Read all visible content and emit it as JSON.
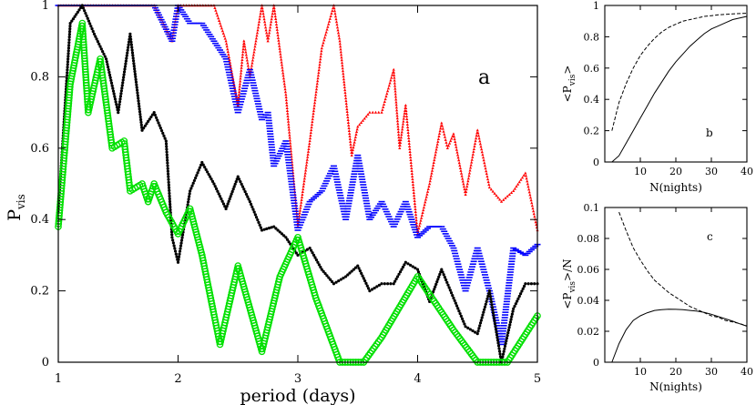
{
  "chart_data": [
    {
      "id": "a",
      "type": "scatter",
      "panel_label": "a",
      "xlabel": "period (days)",
      "ylabel": "P",
      "ylabel_sub": "vis",
      "xlim": [
        1,
        5
      ],
      "ylim": [
        0,
        1
      ],
      "xticks": [
        1,
        2,
        3,
        4,
        5
      ],
      "yticks": [
        0,
        0.2,
        0.4,
        0.6,
        0.8,
        1
      ],
      "ytick_labels": [
        "0",
        "0.2",
        "0.4",
        "0.6",
        "0.8",
        "1"
      ],
      "series": [
        {
          "name": "red",
          "color": "#ff0000",
          "marker": "triangle",
          "x": [
            1.0,
            1.2,
            1.5,
            1.8,
            1.95,
            2.0,
            2.3,
            2.4,
            2.5,
            2.55,
            2.6,
            2.7,
            2.75,
            2.8,
            2.9,
            3.0,
            3.1,
            3.2,
            3.3,
            3.35,
            3.45,
            3.5,
            3.6,
            3.7,
            3.8,
            3.85,
            3.9,
            4.0,
            4.1,
            4.2,
            4.25,
            4.3,
            4.4,
            4.5,
            4.6,
            4.7,
            4.8,
            4.9,
            5.0
          ],
          "y": [
            1.0,
            1.0,
            1.0,
            1.0,
            0.9,
            1.0,
            1.0,
            0.9,
            0.72,
            0.9,
            0.8,
            1.0,
            0.9,
            1.0,
            0.75,
            0.38,
            0.62,
            0.88,
            1.0,
            0.9,
            0.58,
            0.66,
            0.7,
            0.7,
            0.82,
            0.6,
            0.72,
            0.36,
            0.5,
            0.67,
            0.6,
            0.64,
            0.47,
            0.65,
            0.49,
            0.45,
            0.48,
            0.53,
            0.37
          ]
        },
        {
          "name": "blue",
          "color": "#0000ff",
          "marker": "dash",
          "x": [
            1.0,
            1.1,
            1.3,
            1.5,
            1.7,
            1.8,
            1.95,
            2.0,
            2.1,
            2.2,
            2.3,
            2.4,
            2.5,
            2.6,
            2.7,
            2.75,
            2.8,
            2.9,
            3.0,
            3.1,
            3.2,
            3.3,
            3.4,
            3.5,
            3.6,
            3.7,
            3.8,
            3.9,
            4.0,
            4.1,
            4.2,
            4.3,
            4.4,
            4.5,
            4.6,
            4.7,
            4.8,
            4.9,
            5.0
          ],
          "y": [
            1.0,
            1.0,
            1.0,
            1.0,
            1.0,
            1.0,
            0.9,
            1.0,
            0.95,
            0.95,
            0.9,
            0.85,
            0.7,
            0.82,
            0.68,
            0.7,
            0.55,
            0.62,
            0.37,
            0.45,
            0.48,
            0.55,
            0.4,
            0.58,
            0.4,
            0.45,
            0.38,
            0.45,
            0.35,
            0.38,
            0.38,
            0.32,
            0.2,
            0.32,
            0.2,
            0.05,
            0.32,
            0.3,
            0.33
          ]
        },
        {
          "name": "black",
          "color": "#000000",
          "marker": "dot",
          "x": [
            1.0,
            1.1,
            1.2,
            1.3,
            1.4,
            1.5,
            1.6,
            1.7,
            1.8,
            1.9,
            1.95,
            2.0,
            2.1,
            2.2,
            2.3,
            2.4,
            2.5,
            2.6,
            2.7,
            2.8,
            2.9,
            3.0,
            3.1,
            3.2,
            3.3,
            3.4,
            3.5,
            3.6,
            3.7,
            3.8,
            3.9,
            4.0,
            4.1,
            4.2,
            4.3,
            4.4,
            4.5,
            4.6,
            4.7,
            4.8,
            4.9,
            5.0
          ],
          "y": [
            0.42,
            0.95,
            1.0,
            0.92,
            0.85,
            0.7,
            0.92,
            0.65,
            0.7,
            0.62,
            0.35,
            0.28,
            0.48,
            0.56,
            0.5,
            0.43,
            0.52,
            0.45,
            0.37,
            0.38,
            0.35,
            0.3,
            0.32,
            0.26,
            0.22,
            0.24,
            0.27,
            0.2,
            0.22,
            0.22,
            0.28,
            0.26,
            0.17,
            0.26,
            0.18,
            0.1,
            0.08,
            0.2,
            0.0,
            0.15,
            0.22,
            0.22
          ]
        },
        {
          "name": "green",
          "color": "#00e000",
          "marker": "circle",
          "x": [
            1.0,
            1.1,
            1.2,
            1.25,
            1.35,
            1.45,
            1.55,
            1.6,
            1.7,
            1.75,
            1.8,
            1.9,
            2.0,
            2.1,
            2.2,
            2.35,
            2.5,
            2.7,
            2.85,
            3.0,
            3.15,
            3.35,
            3.55,
            3.7,
            4.0,
            4.3,
            4.5,
            4.75,
            5.0
          ],
          "y": [
            0.38,
            0.78,
            0.95,
            0.7,
            0.85,
            0.6,
            0.62,
            0.48,
            0.5,
            0.45,
            0.5,
            0.42,
            0.36,
            0.43,
            0.3,
            0.05,
            0.27,
            0.03,
            0.24,
            0.35,
            0.18,
            0.0,
            0.0,
            0.07,
            0.24,
            0.09,
            0.0,
            0.0,
            0.13
          ]
        }
      ]
    },
    {
      "id": "b",
      "type": "line",
      "panel_label": "b",
      "xlabel": "N(nights)",
      "ylabel": "<P",
      "ylabel_sub": "vis",
      "ylabel_suffix": ">",
      "xlim": [
        0,
        40
      ],
      "ylim": [
        0,
        1
      ],
      "xticks": [
        10,
        20,
        30,
        40
      ],
      "yticks": [
        0,
        0.2,
        0.4,
        0.6,
        0.8,
        1
      ],
      "ytick_labels": [
        "0",
        "0.2",
        "0.4",
        "0.6",
        "0.8",
        "1"
      ],
      "series": [
        {
          "name": "solid",
          "style": "solid",
          "x": [
            2,
            4,
            6,
            8,
            10,
            12,
            14,
            16,
            18,
            20,
            22,
            24,
            26,
            28,
            30,
            32,
            34,
            36,
            38,
            40
          ],
          "y": [
            0.0,
            0.04,
            0.12,
            0.2,
            0.28,
            0.36,
            0.44,
            0.51,
            0.58,
            0.64,
            0.69,
            0.74,
            0.78,
            0.82,
            0.85,
            0.87,
            0.89,
            0.91,
            0.92,
            0.93
          ]
        },
        {
          "name": "dashed",
          "style": "dashed",
          "x": [
            2,
            4,
            6,
            8,
            10,
            12,
            14,
            16,
            18,
            20,
            22,
            24,
            26,
            28,
            30,
            32,
            34,
            36,
            38,
            40
          ],
          "y": [
            0.2,
            0.38,
            0.5,
            0.6,
            0.68,
            0.74,
            0.79,
            0.83,
            0.86,
            0.88,
            0.9,
            0.91,
            0.92,
            0.93,
            0.935,
            0.94,
            0.943,
            0.946,
            0.948,
            0.95
          ]
        }
      ]
    },
    {
      "id": "c",
      "type": "line",
      "panel_label": "c",
      "xlabel": "N(nights)",
      "ylabel": "<P",
      "ylabel_sub": "vis",
      "ylabel_suffix": ">/N",
      "xlim": [
        0,
        40
      ],
      "ylim": [
        0,
        0.1
      ],
      "xticks": [
        10,
        20,
        30,
        40
      ],
      "yticks": [
        0,
        0.02,
        0.04,
        0.06,
        0.08,
        0.1
      ],
      "ytick_labels": [
        "0",
        "0.02",
        "0.04",
        "0.06",
        "0.08",
        "0.1"
      ],
      "series": [
        {
          "name": "solid",
          "style": "solid",
          "x": [
            2,
            4,
            6,
            8,
            10,
            12,
            14,
            16,
            18,
            20,
            22,
            24,
            26,
            28,
            30,
            32,
            34,
            36,
            38,
            40
          ],
          "y": [
            0.0,
            0.012,
            0.021,
            0.027,
            0.03,
            0.032,
            0.0335,
            0.034,
            0.0343,
            0.0342,
            0.034,
            0.0335,
            0.033,
            0.0322,
            0.031,
            0.0295,
            0.028,
            0.0265,
            0.0248,
            0.0233
          ]
        },
        {
          "name": "dashed",
          "style": "dashed",
          "x": [
            4,
            6,
            8,
            10,
            12,
            14,
            16,
            18,
            20,
            22,
            24,
            26,
            28,
            30,
            32,
            34,
            36,
            38,
            40
          ],
          "y": [
            0.097,
            0.085,
            0.074,
            0.066,
            0.059,
            0.053,
            0.049,
            0.045,
            0.042,
            0.039,
            0.036,
            0.034,
            0.032,
            0.03,
            0.029,
            0.027,
            0.026,
            0.025,
            0.0235
          ]
        }
      ]
    }
  ]
}
